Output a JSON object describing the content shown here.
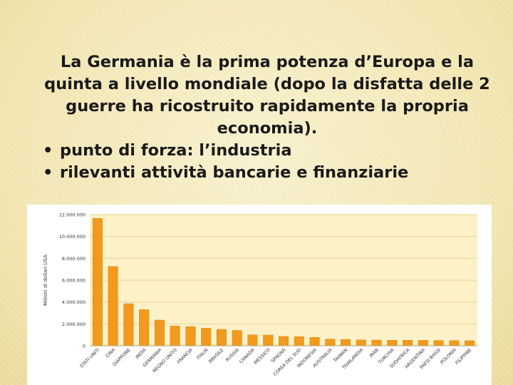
{
  "slide": {
    "paragraph": "La Germania è la prima potenza d’Europa e la quinta a livello mondiale (dopo la disfatta delle 2 guerre ha ricostruito rapidamente la propria economia).",
    "bullet_symbol": "•",
    "bullets": [
      "punto di forza: l’industria",
      "rilevanti attività bancarie e finanziarie"
    ]
  },
  "colors": {
    "bar": "#f29a1e",
    "bar_edge": "#d97f0a",
    "plot_bg": "#fcf1c7",
    "grid": "#e3d49a"
  },
  "chart_data": {
    "type": "bar",
    "ylabel": "Milioni di dollari USA",
    "ylim": [
      0,
      12000000
    ],
    "yticks": [
      0,
      2000000,
      4000000,
      6000000,
      8000000,
      10000000,
      12000000
    ],
    "ytick_labels": [
      "0",
      "2.000.000",
      "4.000.000",
      "6.000.000",
      "8.000.000",
      "10.000.000",
      "12.000.000"
    ],
    "grid": true,
    "categories": [
      "STATI UNITI",
      "CINA",
      "GIAPPONE",
      "INDIA",
      "GERMANIA",
      "REGNO UNITO",
      "FRANCIA",
      "ITALIA",
      "BRASILE",
      "RUSSIA",
      "CANADA",
      "MESSICO",
      "SPAGNA",
      "COREA DEL SUD",
      "INDONESIA",
      "AUSTRALIA",
      "TAIWAN",
      "THAILANDIA",
      "IRAN",
      "TURCHIA",
      "SUDAFRICA",
      "ARGENTINA",
      "PAESI BASSI",
      "POLONIA",
      "FILIPPINE"
    ],
    "values": [
      11650000,
      7250000,
      3850000,
      3300000,
      2350000,
      1800000,
      1750000,
      1600000,
      1500000,
      1400000,
      1000000,
      980000,
      850000,
      830000,
      760000,
      600000,
      580000,
      540000,
      520000,
      510000,
      500000,
      490000,
      480000,
      470000,
      460000
    ]
  }
}
